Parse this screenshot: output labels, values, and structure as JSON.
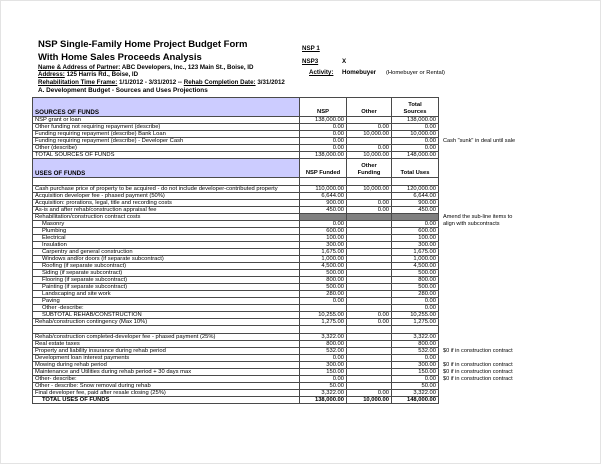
{
  "page": {
    "title_line1": "NSP Single-Family Home Project Budget Form",
    "title_line2": "With Home Sales Proceeds Analysis",
    "partner_label": "Name & Address of Partner:",
    "partner_value": "ABC Developers, Inc., 123 Main St., Boise, ID",
    "address_label": "Address:",
    "address_value": "125 Harris Rd., Boise, ID",
    "timeframe_label": "Rehabilitation Time Frame:",
    "timeframe_value": "1/1/2012 - 3/31/2012  --",
    "completion_label": "Rehab Completion Date:",
    "completion_value": "3/31/2012",
    "section_a": "A.  Development Budget - Sources and Uses Projections",
    "nsp1_label": "NSP 1",
    "nsp3_label": "NSP3",
    "nsp3_value": "X",
    "activity_label": "Activity:",
    "activity_value": "Homebuyer",
    "activity_hint": "(Homebuyer or Rental)"
  },
  "colors": {
    "header_fill": "#ccccff",
    "gray_fill": "#808080"
  },
  "sources": {
    "header": {
      "label": "SOURCES OF FUNDS",
      "col1": "NSP",
      "col2": "Other",
      "col3": "Total\nSources"
    },
    "rows": [
      {
        "label": "NSP grant or loan",
        "nsp": "138,000.00",
        "other": "",
        "total": "138,000.00"
      },
      {
        "label": "Other funding not requiring repayment (describe)",
        "nsp": "0.00",
        "other": "0.00",
        "total": "0.00"
      },
      {
        "label": "Funding requiring repayment (describe) Bank Loan",
        "nsp": "0.00",
        "other": "10,000.00",
        "total": "10,000.00"
      },
      {
        "label": "Funding requiring repayment (describe) - Developer Cash",
        "nsp": "0.00",
        "other": "",
        "total": "0.00",
        "note": "Cash \"sunk\" in deal until sale"
      },
      {
        "label": "Other (describe)",
        "nsp": "0.00",
        "other": "0.00",
        "total": "0.00"
      },
      {
        "label": "TOTAL SOURCES OF FUNDS",
        "nsp": "138,000.00",
        "other": "10,000.00",
        "total": "148,000.00"
      }
    ]
  },
  "uses": {
    "header": {
      "label": "USES OF FUNDS",
      "col1": "NSP Funded",
      "col2": "Other\nFunding",
      "col3": "Total Uses"
    },
    "rows": [
      {
        "blank": true
      },
      {
        "label": "Cash purchase price of property to be acquired - do not include developer-contributed property",
        "nsp": "110,000.00",
        "other": "10,000.00",
        "total": "120,000.00"
      },
      {
        "label": "Acquisition developer fee - phased payment (50%)",
        "nsp": "6,644.00",
        "other": "",
        "total": "6,644.00"
      },
      {
        "label": "Acquisition: prorations, legal, title and recording costs",
        "nsp": "900.00",
        "other": "0.00",
        "total": "900.00"
      },
      {
        "label": "As-is and after rehab/construction appraisal fee",
        "nsp": "450.00",
        "other": "0.00",
        "total": "450.00"
      },
      {
        "label": "Rehabilitation/construction contract costs",
        "gray": true,
        "note": "Amend the sub-line items to"
      },
      {
        "label": "Masonry",
        "indent": true,
        "nsp": "0.00",
        "other": "",
        "total": "0.00",
        "note": "align with subcontracts"
      },
      {
        "label": "Plumbing",
        "indent": true,
        "nsp": "600.00",
        "other": "",
        "total": "600.00"
      },
      {
        "label": "Electrical",
        "indent": true,
        "nsp": "100.00",
        "other": "",
        "total": "100.00"
      },
      {
        "label": "Insulation",
        "indent": true,
        "nsp": "300.00",
        "other": "",
        "total": "300.00"
      },
      {
        "label": "Carpentry and general construction",
        "indent": true,
        "nsp": "1,675.00",
        "other": "",
        "total": "1,675.00"
      },
      {
        "label": "Windows and/or doors (if separate subcontract)",
        "indent": true,
        "nsp": "1,000.00",
        "other": "",
        "total": "1,000.00"
      },
      {
        "label": "Roofing (if separate subcontract)",
        "indent": true,
        "nsp": "4,500.00",
        "other": "",
        "total": "4,500.00"
      },
      {
        "label": "Siding  (if separate subcontract)",
        "indent": true,
        "nsp": "500.00",
        "other": "",
        "total": "500.00"
      },
      {
        "label": "Flooring (if separate subcontract)",
        "indent": true,
        "nsp": "800.00",
        "other": "",
        "total": "800.00"
      },
      {
        "label": "Painting (if separate subcontract)",
        "indent": true,
        "nsp": "500.00",
        "other": "",
        "total": "500.00"
      },
      {
        "label": "Landscaping and site work",
        "indent": true,
        "nsp": "280.00",
        "other": "",
        "total": "280.00"
      },
      {
        "label": "Paving",
        "indent": true,
        "nsp": "0.00",
        "other": "",
        "total": "0.00"
      },
      {
        "label": "Other -describe:",
        "indent": true,
        "nsp": "",
        "other": "",
        "total": "0.00"
      },
      {
        "label": "SUBTOTAL REHAB/CONSTRUCTION",
        "indent": true,
        "nsp": "10,255.00",
        "other": "0.00",
        "total": "10,255.00"
      },
      {
        "label": "Rehab/construction contingency (Max 10%)",
        "nsp": "1,275.00",
        "other": "0.00",
        "total": "1,275.00"
      },
      {
        "blank": true
      },
      {
        "label": "Rehab/construction completed-developer fee - phased payment (25%)",
        "nsp": "3,322.00",
        "other": "",
        "total": "3,322.00"
      },
      {
        "label": "Real estate taxes",
        "nsp": "800.00",
        "other": "",
        "total": "800.00"
      },
      {
        "label": "Property and liability insurance during rehab period",
        "nsp": "532.00",
        "other": "",
        "total": "532.00",
        "note": "$0 if in construction contract"
      },
      {
        "label": "Development loan interest payments",
        "nsp": "0.00",
        "other": "",
        "total": "0.00"
      },
      {
        "label": "Mowing  during rehab period",
        "nsp": "300.00",
        "other": "",
        "total": "300.00",
        "note": "$0 if in construction contract"
      },
      {
        "label": "Maintenance and Utilities during rehab period + 30 days max",
        "nsp": "150.00",
        "other": "",
        "total": "150.00",
        "note": "$0 if in construction contract"
      },
      {
        "label": "Other- describe:",
        "nsp": "0.00",
        "other": "",
        "total": "0.00",
        "note": "$0 if in construction contract"
      },
      {
        "label": "Other - describe: Snow removal during rehab",
        "nsp": "50.00",
        "other": "",
        "total": "50.00"
      },
      {
        "label": "Final developer fee, paid after resale closing (25%)",
        "nsp": "3,322.00",
        "other": "0.00",
        "total": "3,322.00"
      },
      {
        "label": "TOTAL USES OF FUNDS",
        "bold": true,
        "indent": true,
        "nsp": "138,000.00",
        "other": "10,000.00",
        "total": "148,000.00"
      }
    ]
  }
}
